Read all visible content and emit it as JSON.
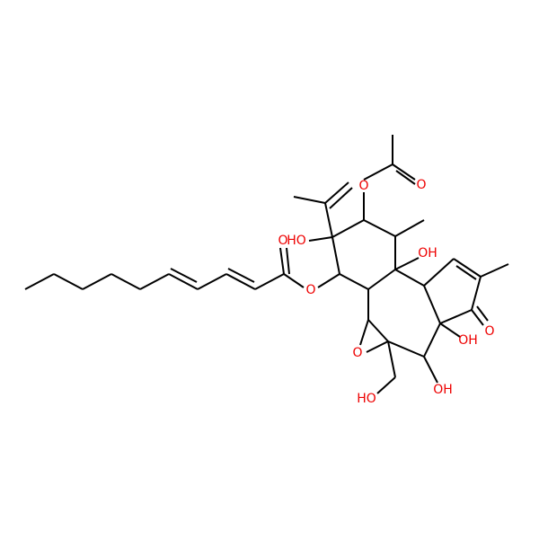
{
  "atoms": [
    {
      "label": "O"
    },
    {
      "label": "O"
    },
    {
      "label": "OH"
    },
    {
      "label": "HO"
    },
    {
      "label": "O"
    },
    {
      "label": "O"
    },
    {
      "label": "O"
    },
    {
      "label": "HO"
    },
    {
      "label": "OH"
    },
    {
      "label": "OH"
    },
    {
      "label": "O"
    }
  ]
}
